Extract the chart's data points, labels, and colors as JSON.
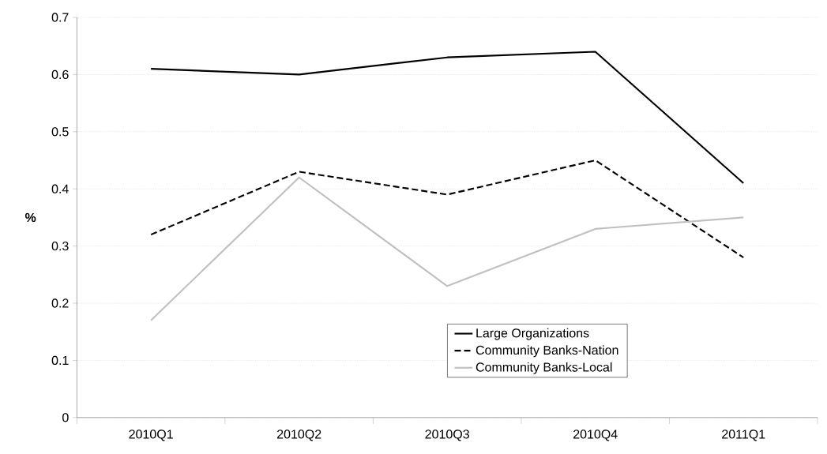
{
  "chart_data": {
    "type": "line",
    "ylabel": "%",
    "categories": [
      "2010Q1",
      "2010Q2",
      "2010Q3",
      "2010Q4",
      "2011Q1"
    ],
    "series": [
      {
        "name": "Large Organizations",
        "color": "#000000",
        "line_style": "solid",
        "values": [
          0.61,
          0.6,
          0.63,
          0.64,
          0.41
        ]
      },
      {
        "name": "Community Banks-Nation",
        "color": "#000000",
        "line_style": "dashed",
        "values": [
          0.32,
          0.43,
          0.39,
          0.45,
          0.28
        ]
      },
      {
        "name": "Community Banks-Local",
        "color": "#c0c0c0",
        "line_style": "solid",
        "values": [
          0.17,
          0.42,
          0.23,
          0.33,
          0.35
        ]
      }
    ],
    "ylim": [
      0,
      0.7
    ],
    "yticks": [
      0,
      0.1,
      0.2,
      0.3,
      0.4,
      0.5,
      0.6,
      0.7
    ],
    "grid": "y",
    "legend": "bottom right",
    "marker": "none"
  }
}
